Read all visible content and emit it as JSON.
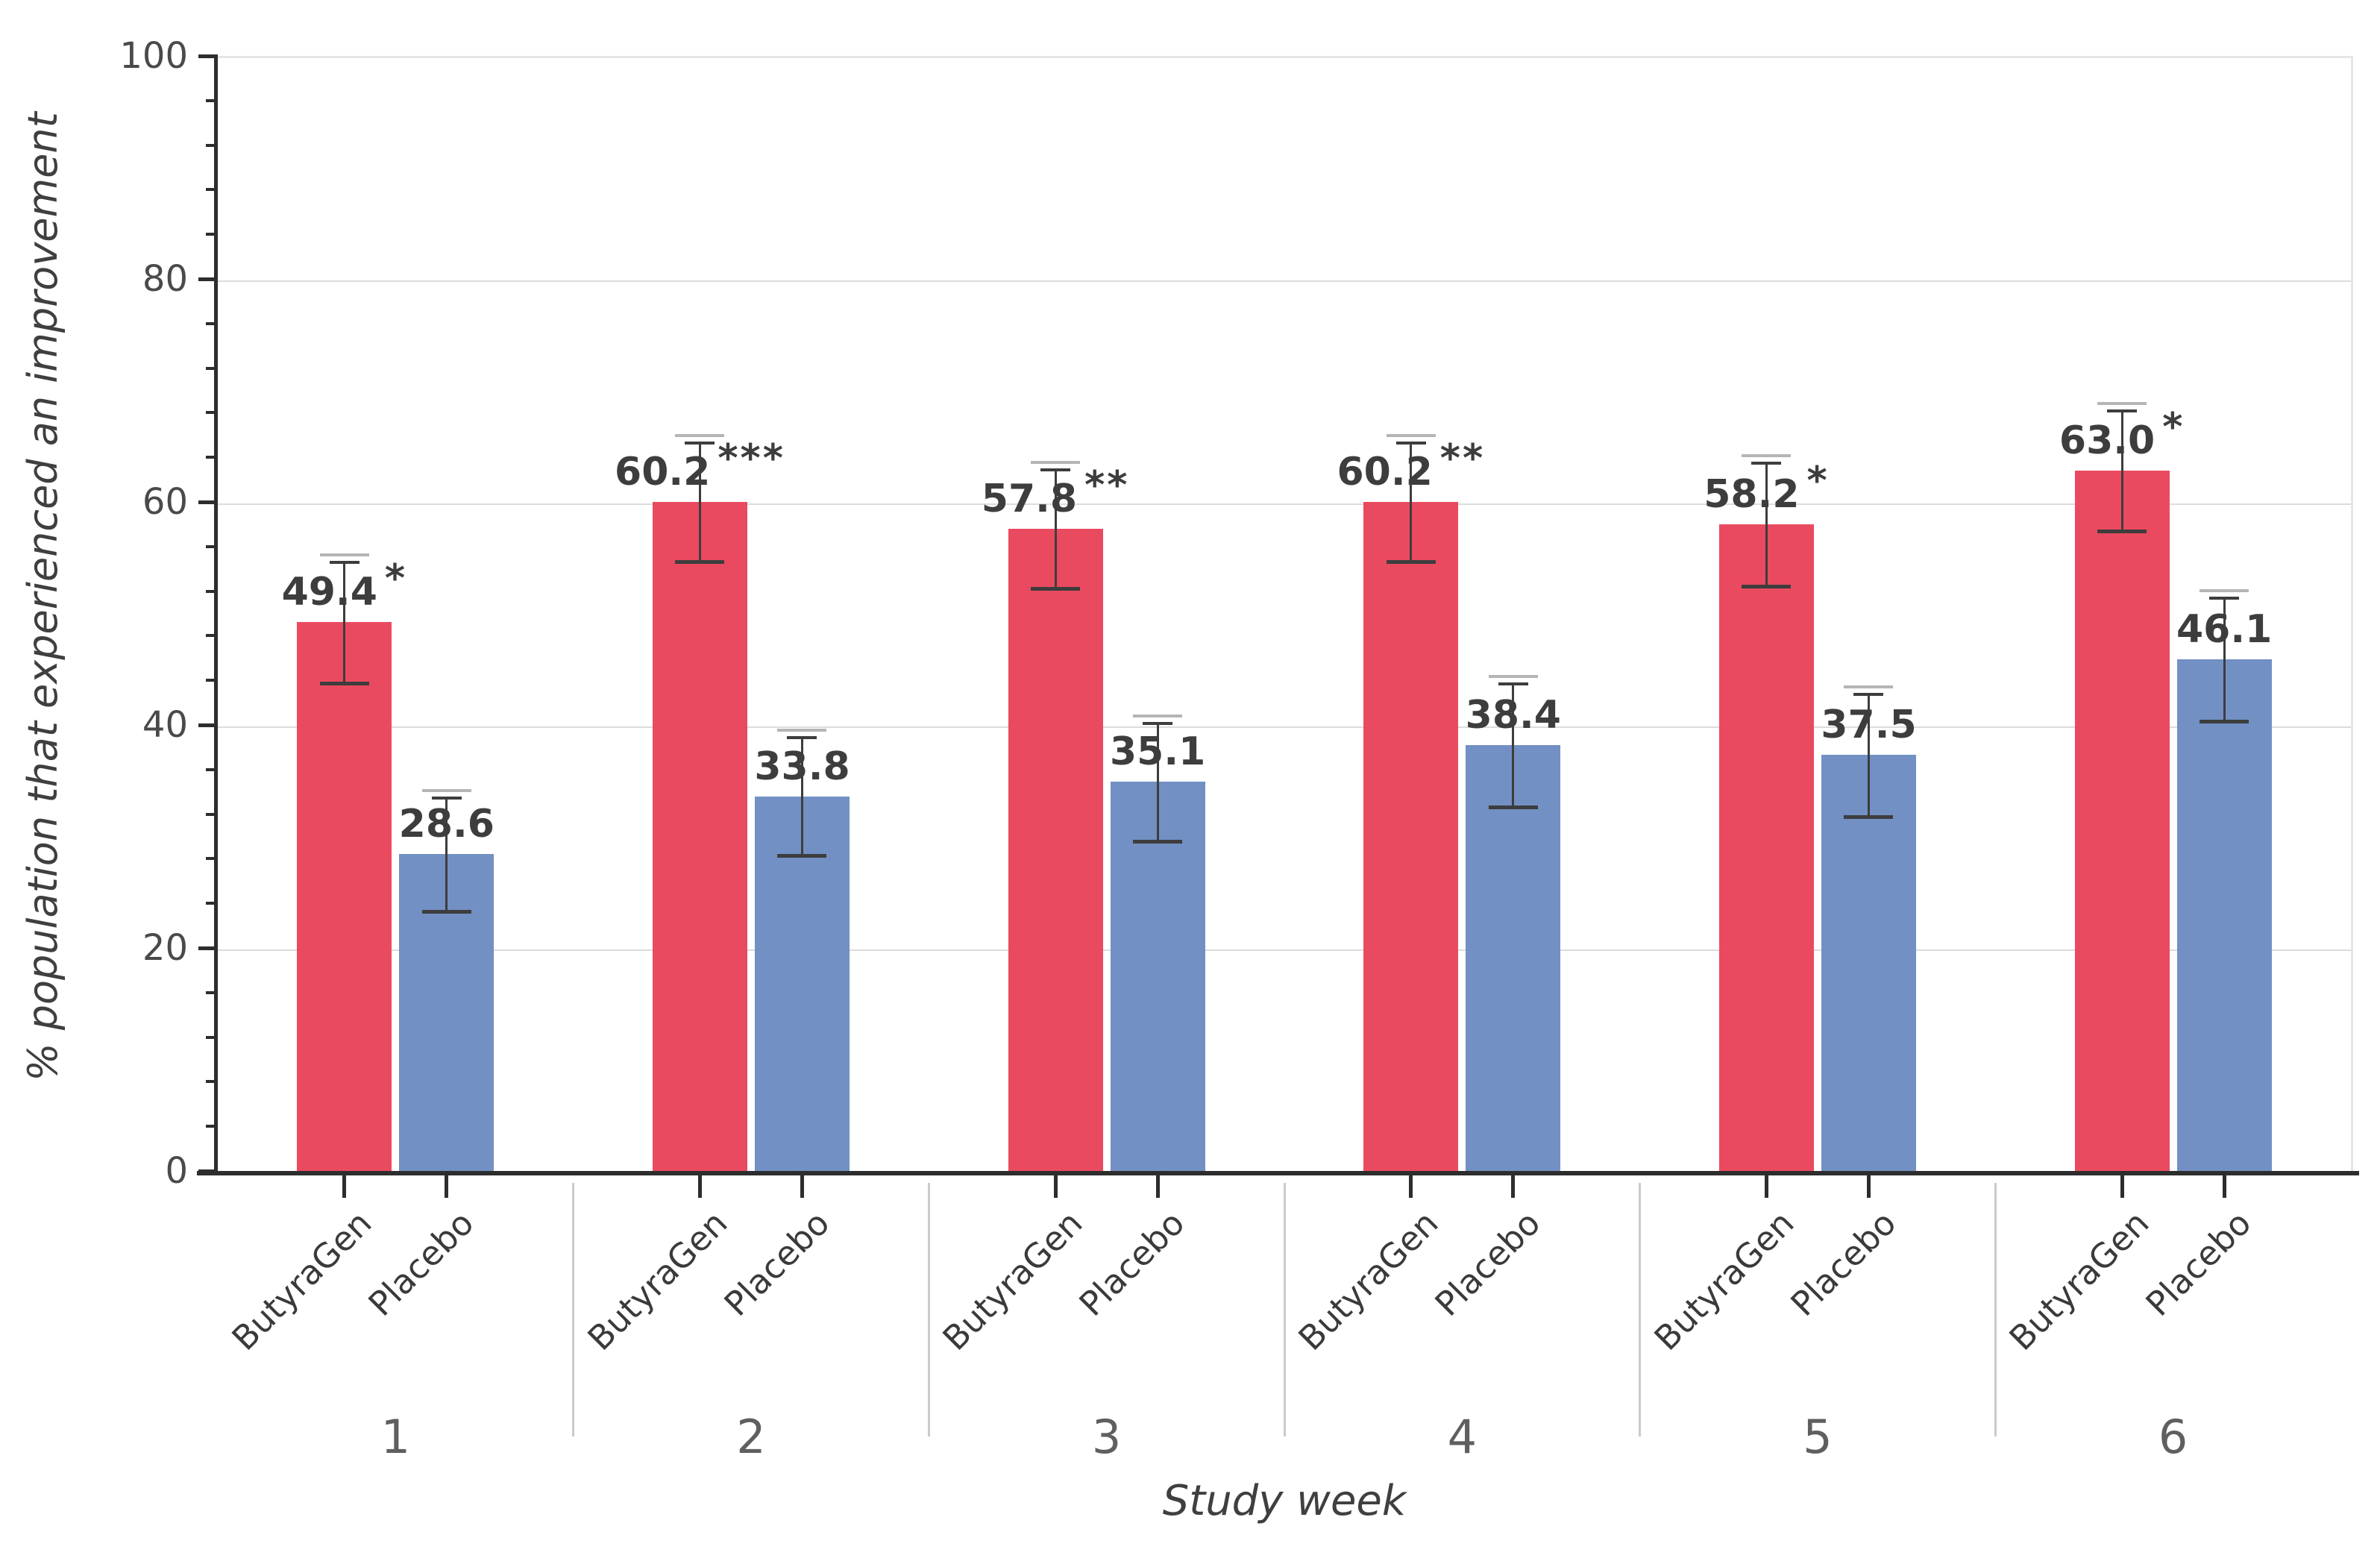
{
  "figure": {
    "y_axis_title": "% population that experienced an improvement",
    "x_axis_title": "Study week"
  },
  "chart_data": {
    "type": "bar",
    "title": "",
    "xlabel": "Study week",
    "ylabel": "% population that experienced an improvement",
    "ylim": [
      0,
      100
    ],
    "y_major_ticks": [
      0,
      20,
      40,
      60,
      80,
      100
    ],
    "y_minor_tick_step": 4,
    "grid": "horizontal-major-only",
    "legend": "none",
    "categories": [
      "1",
      "2",
      "3",
      "4",
      "5",
      "6"
    ],
    "bar_labels": [
      "ButyraGen",
      "Placebo"
    ],
    "series": [
      {
        "name": "ButyraGen",
        "color": "#ea4a60",
        "values": [
          49.4,
          60.2,
          57.8,
          60.2,
          58.2,
          63.0
        ],
        "value_labels": [
          "49.4",
          "60.2",
          "57.8",
          "60.2",
          "58.2",
          "63.0"
        ],
        "significance": [
          "*",
          "***",
          "**",
          "**",
          "*",
          "*"
        ],
        "error": [
          5.5,
          5.4,
          5.4,
          5.4,
          5.6,
          5.5
        ]
      },
      {
        "name": "Placebo",
        "color": "#7290c4",
        "values": [
          28.6,
          33.8,
          35.1,
          38.4,
          37.5,
          46.1
        ],
        "value_labels": [
          "28.6",
          "33.8",
          "35.1",
          "38.4",
          "37.5",
          "46.1"
        ],
        "significance": [
          "",
          "",
          "",
          "",
          "",
          ""
        ],
        "error": [
          5.2,
          5.4,
          5.4,
          5.6,
          5.6,
          5.6
        ]
      }
    ],
    "error_bar_style": {
      "line_color": "#3d3d3d",
      "upper_cap_color": "#b5b5b5",
      "lower_cap_color": "#3d3d3d"
    },
    "colors": {
      "axis": "#2d2d2d",
      "grid": "#dcdcdc",
      "tick_label": "#4a4a4a",
      "value_label": "#3d3d3d",
      "week_label": "#5f5f5f",
      "separator": "#cbcbcb",
      "panel_border": "#e6e6e6"
    }
  }
}
